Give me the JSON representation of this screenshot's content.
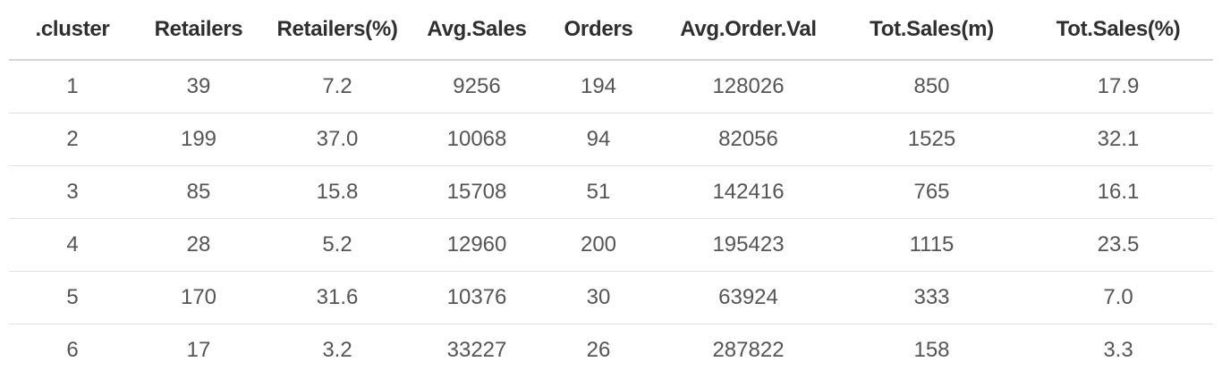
{
  "table": {
    "headers": [
      ".cluster",
      "Retailers",
      "Retailers(%)",
      "Avg.Sales",
      "Orders",
      "Avg.Order.Val",
      "Tot.Sales(m)",
      "Tot.Sales(%)"
    ],
    "rows": [
      [
        "1",
        "39",
        "7.2",
        "9256",
        "194",
        "128026",
        "850",
        "17.9"
      ],
      [
        "2",
        "199",
        "37.0",
        "10068",
        "94",
        "82056",
        "1525",
        "32.1"
      ],
      [
        "3",
        "85",
        "15.8",
        "15708",
        "51",
        "142416",
        "765",
        "16.1"
      ],
      [
        "4",
        "28",
        "5.2",
        "12960",
        "200",
        "195423",
        "1115",
        "23.5"
      ],
      [
        "5",
        "170",
        "31.6",
        "10376",
        "30",
        "63924",
        "333",
        "7.0"
      ],
      [
        "6",
        "17",
        "3.2",
        "33227",
        "26",
        "287822",
        "158",
        "3.3"
      ]
    ]
  }
}
